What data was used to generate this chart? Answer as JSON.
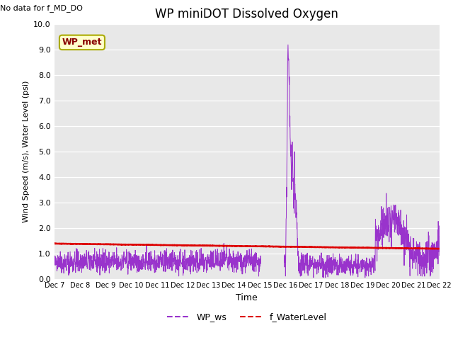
{
  "title": "WP miniDOT Dissolved Oxygen",
  "top_left_text": "No data for f_MD_DO",
  "ylabel": "Wind Speed (m/s), Water Level (psi)",
  "xlabel": "Time",
  "ylim": [
    0.0,
    10.0
  ],
  "yticks": [
    0.0,
    1.0,
    2.0,
    3.0,
    4.0,
    5.0,
    6.0,
    7.0,
    8.0,
    9.0,
    10.0
  ],
  "xtick_labels": [
    "Dec 7",
    "Dec 8",
    "Dec 9",
    "Dec 10",
    "Dec 11",
    "Dec 12",
    "Dec 13",
    "Dec 14",
    "Dec 15",
    "Dec 16",
    "Dec 17",
    "Dec 18",
    "Dec 19",
    "Dec 20",
    "Dec 21",
    "Dec 22"
  ],
  "bg_color": "#e8e8e8",
  "fig_bg_color": "#ffffff",
  "wp_ws_color": "#9933cc",
  "f_waterLevel_color": "#dd0000",
  "legend_box_color": "#ffffcc",
  "legend_box_edge_color": "#aaaa00",
  "legend_text_color": "#880000",
  "legend_text": "WP_met",
  "line_legend": [
    {
      "label": "WP_ws",
      "color": "#9933cc"
    },
    {
      "label": "f_WaterLevel",
      "color": "#dd0000"
    }
  ],
  "title_fontsize": 12,
  "axis_fontsize": 8,
  "ylabel_fontsize": 8,
  "xlabel_fontsize": 9
}
